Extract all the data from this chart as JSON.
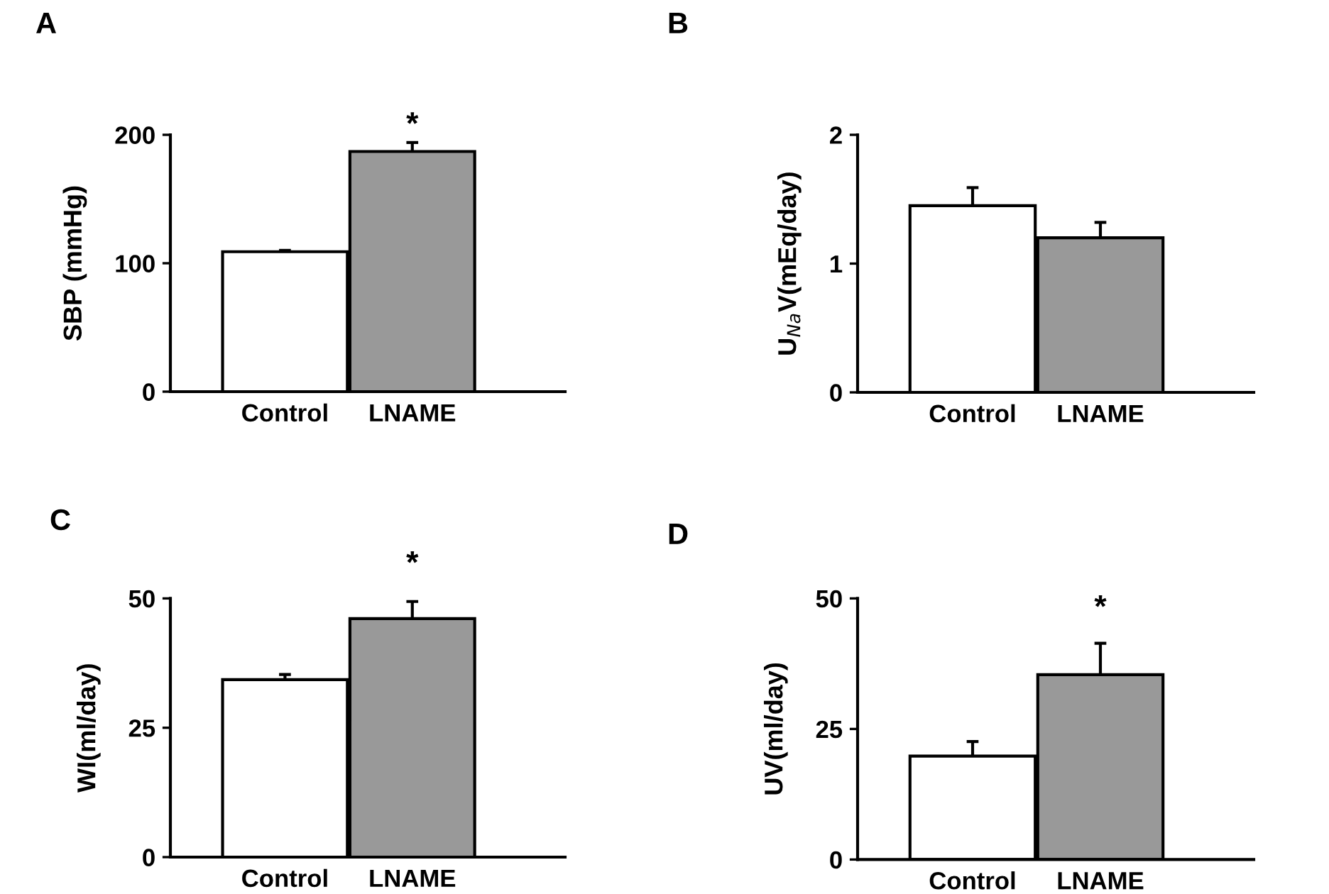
{
  "chart_data": [
    {
      "type": "bar",
      "title": "A",
      "ylabel": "SBP (mmHg)",
      "categories": [
        "Control",
        "LNAME"
      ],
      "values": [
        109,
        187
      ],
      "errors": [
        1,
        7
      ],
      "colors": [
        "#ffffff",
        "#999999"
      ],
      "ylim": [
        0,
        200
      ],
      "yticks": [
        0,
        100,
        200
      ],
      "grid": false,
      "legend": false,
      "annotations": [
        "*"
      ]
    },
    {
      "type": "bar",
      "title": "B",
      "ylabel": "U$_{Na}$V(mEq/day)",
      "categories": [
        "Control",
        "LNAME"
      ],
      "values": [
        1.45,
        1.2
      ],
      "errors": [
        0.14,
        0.12
      ],
      "colors": [
        "#ffffff",
        "#999999"
      ],
      "ylim": [
        0,
        2
      ],
      "yticks": [
        0,
        1,
        2
      ],
      "grid": false,
      "legend": false
    },
    {
      "type": "bar",
      "title": "C",
      "ylabel": "WI(ml/day)",
      "categories": [
        "Control",
        "LNAME"
      ],
      "values": [
        34.3,
        46.1
      ],
      "errors": [
        1,
        3.3
      ],
      "colors": [
        "#ffffff",
        "#999999"
      ],
      "ylim": [
        0,
        50
      ],
      "yticks": [
        0,
        25,
        50
      ],
      "grid": false,
      "legend": false,
      "annotations": [
        "*"
      ]
    },
    {
      "type": "bar",
      "title": "D",
      "ylabel": "UV(ml/day)",
      "categories": [
        "Control",
        "LNAME"
      ],
      "values": [
        19.8,
        35.4
      ],
      "errors": [
        2.8,
        6
      ],
      "colors": [
        "#ffffff",
        "#999999"
      ],
      "ylim": [
        0,
        50
      ],
      "yticks": [
        0,
        25,
        50
      ],
      "grid": false,
      "legend": false,
      "annotations": [
        "*"
      ]
    }
  ]
}
